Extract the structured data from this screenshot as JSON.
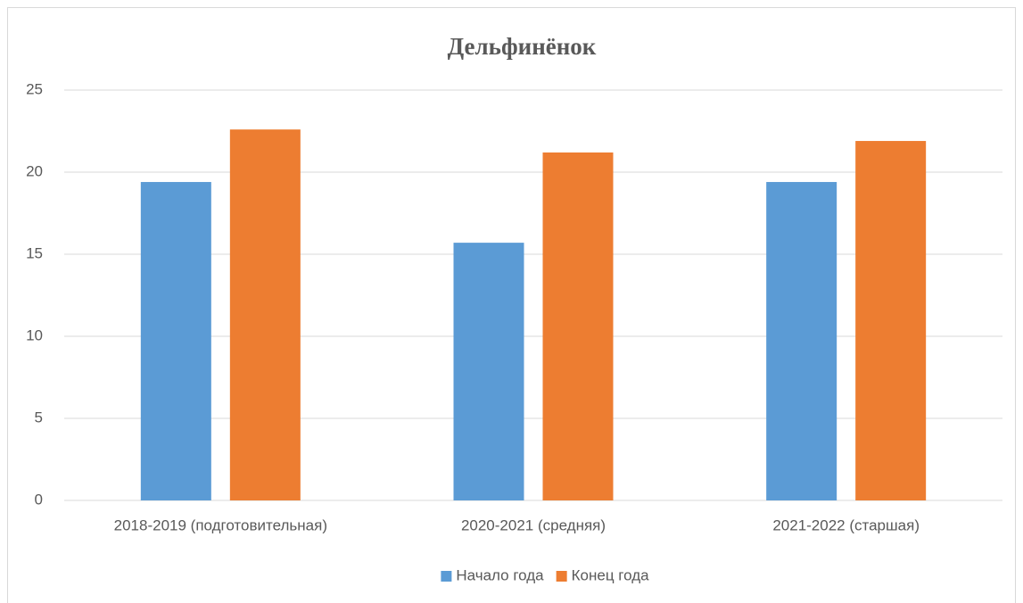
{
  "chart_data": {
    "type": "bar",
    "title": "Дельфинёнок",
    "categories": [
      "2018-2019 (подготовительная)",
      "2020-2021 (средняя)",
      "2021-2022 (старшая)"
    ],
    "series": [
      {
        "name": "Начало года",
        "color": "#5b9bd5",
        "values": [
          19.4,
          15.7,
          19.4
        ]
      },
      {
        "name": "Конец года",
        "color": "#ed7d31",
        "values": [
          22.6,
          21.2,
          21.9
        ]
      }
    ],
    "ylim": [
      0,
      25
    ],
    "yticks": [
      0,
      5,
      10,
      15,
      20,
      25
    ],
    "grid": true,
    "legend": "bottom"
  }
}
